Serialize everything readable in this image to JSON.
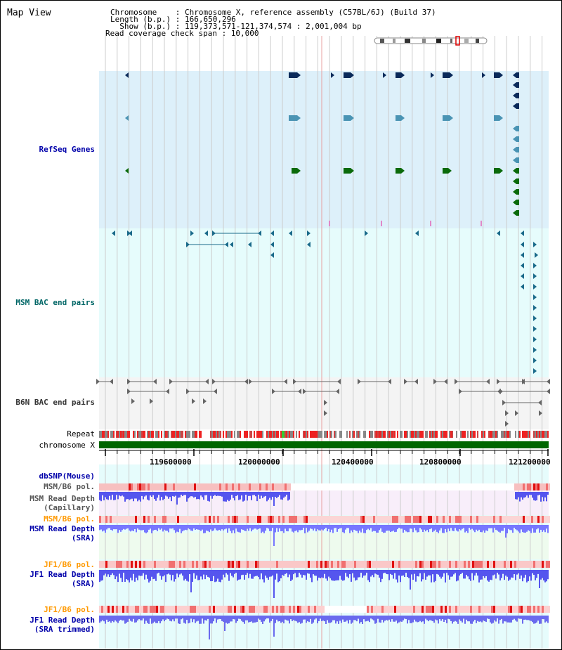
{
  "title": "Map View",
  "header": {
    "chromosome_line": "Chromosome    : Chromosome X, reference assembly (C57BL/6J) (Build 37)",
    "length_line": "Length (b.p.) : 166,650,296",
    "show_line": "  Show (b.p.) : 119,373,571-121,374,574 : 2,001,004 bp",
    "coverage_line": "Read coverage check span : 10,000"
  },
  "tracks": {
    "refseq": {
      "label": "RefSeq Genes",
      "color": "#0000aa"
    },
    "msm_bac": {
      "label": "MSM BAC end pairs",
      "color": "#006666"
    },
    "b6n_bac": {
      "label": "B6N BAC end pairs",
      "color": "#333333"
    },
    "repeat": {
      "label": "Repeat",
      "color": "#000000"
    },
    "chromosome": {
      "label": "chromosome X",
      "color": "#000000"
    },
    "dbsnp": {
      "label": "dbSNP(Mouse)",
      "color": "#0000aa"
    },
    "msm_b6_pol_cap": {
      "label": "MSM/B6 pol.",
      "color": "#555555"
    },
    "msm_depth_cap": {
      "label1": "MSM Read Depth",
      "label2": "(Capillary)",
      "color": "#555555"
    },
    "msm_b6_pol_sra": {
      "label": "MSM/B6 pol.",
      "color": "#ff9900"
    },
    "msm_depth_sra": {
      "label1": "MSM Read Depth",
      "label2": "(SRA)",
      "color": "#0000aa"
    },
    "jf1_b6_pol": {
      "label": "JF1/B6 pol.",
      "color": "#ff9900"
    },
    "jf1_depth_sra": {
      "label1": "JF1 Read Depth",
      "label2": "(SRA)",
      "color": "#0000aa"
    },
    "jf1_b6_pol_trim": {
      "label": "JF1/B6 pol.",
      "color": "#ff9900"
    },
    "jf1_depth_trim": {
      "label1": "JF1 Read Depth",
      "label2": "(SRA trimmed)",
      "color": "#0000aa"
    }
  },
  "ruler": {
    "ticks": [
      "119600000",
      "120000000",
      "120400000",
      "120800000",
      "121200000"
    ]
  },
  "colors": {
    "refseq_bg": "#ddf0fa",
    "lightcyan_bg": "#e6fcfc",
    "refseq_dark": "#0a2a5a",
    "refseq_mid": "#4a94b4",
    "refseq_green": "#0a6a0a",
    "bac_teal": "#1a6a8a",
    "depth_blue": "#5555ee",
    "pol_red": "#ee3333",
    "chrom_green": "#006600"
  }
}
